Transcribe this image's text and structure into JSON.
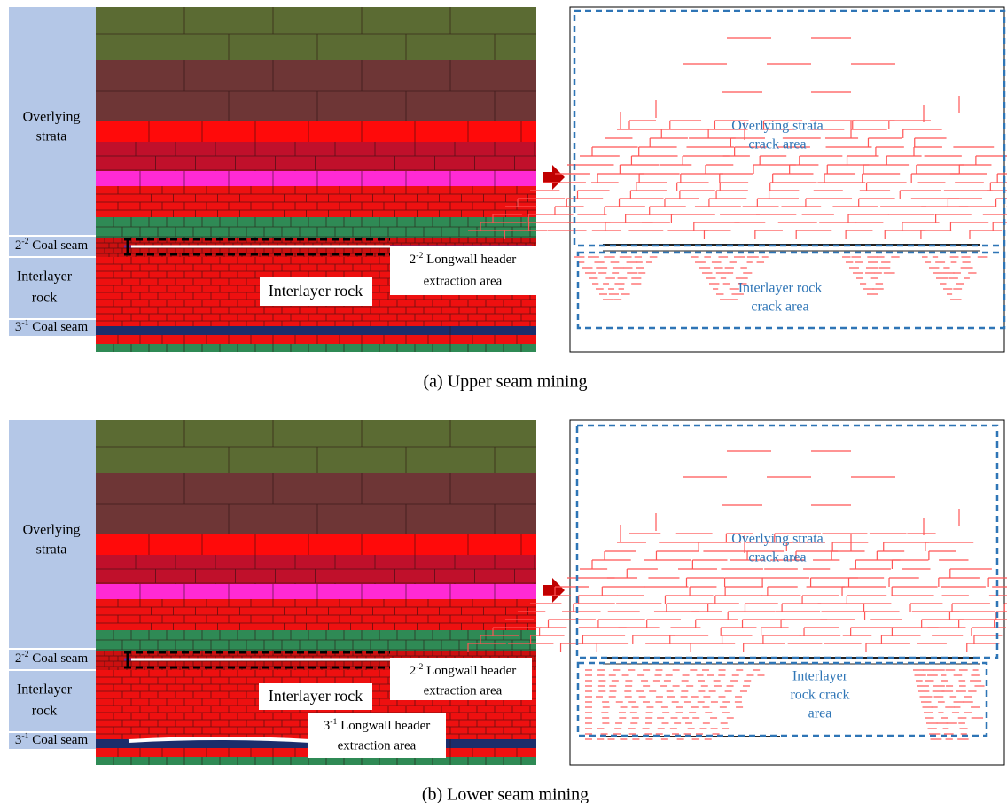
{
  "panels": [
    {
      "side_labels": {
        "overlying": [
          "Overlying",
          "strata"
        ],
        "seam22": {
          "base": "2",
          "sup": "-2",
          "rest": " Coal seam"
        },
        "interlayer": [
          "Interlayer",
          "rock"
        ],
        "seam31": {
          "base": "3",
          "sup": "-1",
          "rest": " Coal seam"
        }
      },
      "interlayer_box": "Interlayer rock",
      "extraction_22": {
        "base": "2",
        "sup": "-2",
        "lines": [
          " Longwall header",
          "extraction area"
        ]
      },
      "crack_overlying": [
        "Overlying strata",
        "crack area"
      ],
      "crack_interlayer": [
        "Interlayer rock",
        "crack area"
      ],
      "caption": "(a) Upper seam mining"
    },
    {
      "side_labels": {
        "overlying": [
          "Overlying",
          "strata"
        ],
        "seam22": {
          "base": "2",
          "sup": "-2",
          "rest": " Coal seam"
        },
        "interlayer": [
          "Interlayer",
          "rock"
        ],
        "seam31": {
          "base": "3",
          "sup": "-1",
          "rest": " Coal seam"
        }
      },
      "interlayer_box": "Interlayer rock",
      "extraction_22": {
        "base": "2",
        "sup": "-2",
        "lines": [
          " Longwall header",
          "extraction area"
        ]
      },
      "extraction_31": {
        "base": "3",
        "sup": "-1",
        "lines": [
          " Longwall header",
          "extraction area"
        ]
      },
      "crack_overlying": [
        "Overlying strata",
        "crack area"
      ],
      "crack_interlayer": [
        "Interlayer",
        "rock crack",
        "area"
      ],
      "caption": "(b) Lower seam mining"
    }
  ]
}
